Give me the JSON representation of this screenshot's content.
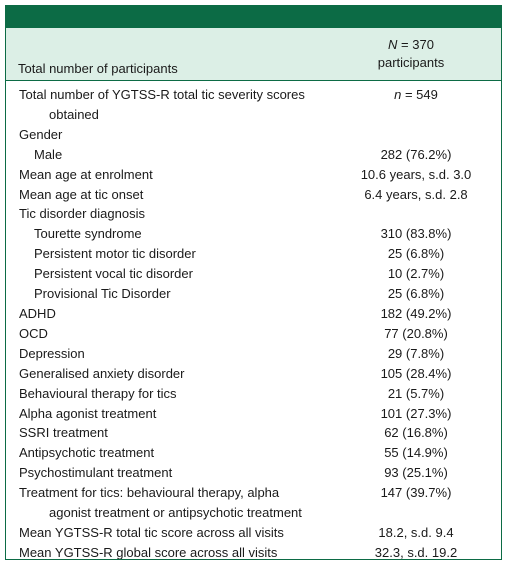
{
  "header": {
    "left": "Total number of participants",
    "right_line1_italic": "N",
    "right_line1_rest": " = 370",
    "right_line2": "participants"
  },
  "rows": [
    {
      "label1": "Total number of YGTSS-R total tic severity scores",
      "label2": "obtained",
      "value_italic": "n",
      "value_rest": " = 549"
    },
    {
      "label": "Gender",
      "value": ""
    },
    {
      "label": "Male",
      "value": "282 (76.2%)"
    },
    {
      "label": "Mean age at enrolment",
      "value": "10.6 years, s.d. 3.0"
    },
    {
      "label": "Mean age at tic onset",
      "value": "6.4 years, s.d. 2.8"
    },
    {
      "label": "Tic disorder diagnosis",
      "value": ""
    },
    {
      "label": "Tourette syndrome",
      "value": "310 (83.8%)"
    },
    {
      "label": "Persistent motor tic disorder",
      "value": "25 (6.8%)"
    },
    {
      "label": "Persistent vocal tic disorder",
      "value": "10 (2.7%)"
    },
    {
      "label": "Provisional Tic Disorder",
      "value": "25 (6.8%)"
    },
    {
      "label": "ADHD",
      "value": "182 (49.2%)"
    },
    {
      "label": "OCD",
      "value": "77 (20.8%)"
    },
    {
      "label": "Depression",
      "value": "29 (7.8%)"
    },
    {
      "label": "Generalised anxiety disorder",
      "value": "105 (28.4%)"
    },
    {
      "label": "Behavioural therapy for tics",
      "value": "21 (5.7%)"
    },
    {
      "label": "Alpha agonist treatment",
      "value": "101 (27.3%)"
    },
    {
      "label": "SSRI treatment",
      "value": "62 (16.8%)"
    },
    {
      "label": "Antipsychotic treatment",
      "value": "55 (14.9%)"
    },
    {
      "label": "Psychostimulant treatment",
      "value": "93 (25.1%)"
    },
    {
      "label1": "Treatment for tics: behavioural therapy, alpha",
      "label2": "agonist treatment or antipsychotic treatment",
      "value": "147 (39.7%)"
    },
    {
      "label": "Mean YGTSS-R total tic score across all visits",
      "value": "18.2, s.d. 9.4"
    },
    {
      "label": "Mean YGTSS-R global score across all visits",
      "value": "32.3, s.d. 19.2"
    }
  ]
}
